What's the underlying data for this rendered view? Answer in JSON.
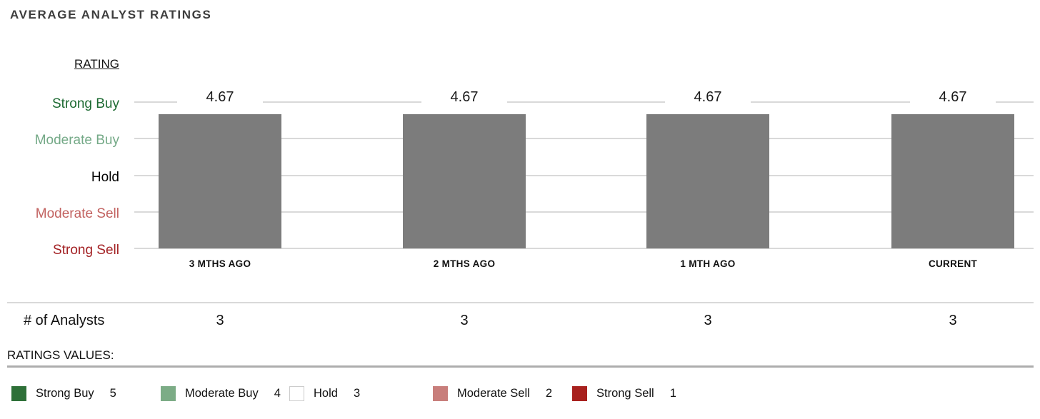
{
  "title": "AVERAGE ANALYST RATINGS",
  "chart_data": {
    "type": "bar",
    "title": "AVERAGE ANALYST RATINGS",
    "ylabel": "RATING",
    "xlabel": "",
    "categories": [
      "3 MTHS AGO",
      "2 MTHS AGO",
      "1 MTH AGO",
      "CURRENT"
    ],
    "values": [
      4.67,
      4.67,
      4.67,
      4.67
    ],
    "value_labels": [
      "4.67",
      "4.67",
      "4.67",
      "4.67"
    ],
    "ylim": [
      1,
      5
    ],
    "grid": true,
    "bar_color": "#7c7c7c",
    "gridline_color": "#d9d9d9",
    "y_ticks": [
      {
        "label": "Strong Buy",
        "value": 5,
        "color": "#1d6a32"
      },
      {
        "label": "Moderate Buy",
        "value": 4,
        "color": "#74a987"
      },
      {
        "label": "Hold",
        "value": 3,
        "color": "#000000"
      },
      {
        "label": "Moderate Sell",
        "value": 2,
        "color": "#c26260"
      },
      {
        "label": "Strong Sell",
        "value": 1,
        "color": "#a32124"
      }
    ],
    "analysts_row": {
      "label": "# of Analysts",
      "values": [
        "3",
        "3",
        "3",
        "3"
      ]
    }
  },
  "ratings_values": {
    "label": "RATINGS VALUES:",
    "legend": [
      {
        "name": "Strong Buy",
        "value": "5",
        "fill": "#2e7038",
        "border": "#2e7038"
      },
      {
        "name": "Moderate Buy",
        "value": "4",
        "fill": "#7cac86",
        "border": "#7cac86"
      },
      {
        "name": "Hold",
        "value": "3",
        "fill": "#ffffff",
        "border": "#cccccc"
      },
      {
        "name": "Moderate Sell",
        "value": "2",
        "fill": "#c87e7b",
        "border": "#c87e7b"
      },
      {
        "name": "Strong Sell",
        "value": "1",
        "fill": "#a8211e",
        "border": "#a8211e"
      }
    ]
  }
}
